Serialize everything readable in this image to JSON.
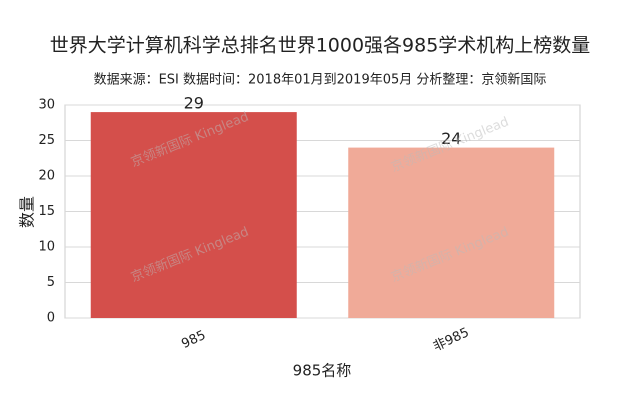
{
  "chart_data": {
    "type": "bar",
    "title": "世界大学计算机科学总排名世界1000强各985学术机构上榜数量",
    "subtitle": "数据来源：ESI 数据时间：2018年01月到2019年05月 分析整理：京领新国际",
    "x_label": "985名称",
    "y_label": "数量",
    "categories": [
      "985",
      "非985"
    ],
    "values": [
      29,
      24
    ],
    "colors": [
      "#d44f4b",
      "#f0aa98"
    ],
    "ylim": [
      0,
      30
    ],
    "yticks": [
      0,
      5,
      10,
      15,
      20,
      25,
      30
    ],
    "grid": true,
    "watermark": "京领新国际 Kinglead"
  }
}
